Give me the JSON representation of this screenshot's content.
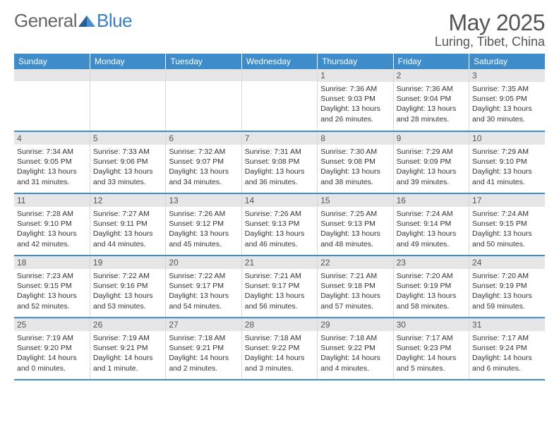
{
  "logo": {
    "text1": "General",
    "text2": "Blue"
  },
  "title": "May 2025",
  "location": "Luring, Tibet, China",
  "dayHeaders": [
    "Sunday",
    "Monday",
    "Tuesday",
    "Wednesday",
    "Thursday",
    "Friday",
    "Saturday"
  ],
  "colors": {
    "headerBg": "#3e8cc9",
    "headerText": "#ffffff",
    "daynumBg": "#e6e6e6",
    "borderBlue": "#3e8cc9",
    "bodyText": "#333333"
  },
  "weeks": [
    [
      {
        "num": "",
        "sunrise": "",
        "sunset": "",
        "daylight": ""
      },
      {
        "num": "",
        "sunrise": "",
        "sunset": "",
        "daylight": ""
      },
      {
        "num": "",
        "sunrise": "",
        "sunset": "",
        "daylight": ""
      },
      {
        "num": "",
        "sunrise": "",
        "sunset": "",
        "daylight": ""
      },
      {
        "num": "1",
        "sunrise": "Sunrise: 7:36 AM",
        "sunset": "Sunset: 9:03 PM",
        "daylight": "Daylight: 13 hours and 26 minutes."
      },
      {
        "num": "2",
        "sunrise": "Sunrise: 7:36 AM",
        "sunset": "Sunset: 9:04 PM",
        "daylight": "Daylight: 13 hours and 28 minutes."
      },
      {
        "num": "3",
        "sunrise": "Sunrise: 7:35 AM",
        "sunset": "Sunset: 9:05 PM",
        "daylight": "Daylight: 13 hours and 30 minutes."
      }
    ],
    [
      {
        "num": "4",
        "sunrise": "Sunrise: 7:34 AM",
        "sunset": "Sunset: 9:05 PM",
        "daylight": "Daylight: 13 hours and 31 minutes."
      },
      {
        "num": "5",
        "sunrise": "Sunrise: 7:33 AM",
        "sunset": "Sunset: 9:06 PM",
        "daylight": "Daylight: 13 hours and 33 minutes."
      },
      {
        "num": "6",
        "sunrise": "Sunrise: 7:32 AM",
        "sunset": "Sunset: 9:07 PM",
        "daylight": "Daylight: 13 hours and 34 minutes."
      },
      {
        "num": "7",
        "sunrise": "Sunrise: 7:31 AM",
        "sunset": "Sunset: 9:08 PM",
        "daylight": "Daylight: 13 hours and 36 minutes."
      },
      {
        "num": "8",
        "sunrise": "Sunrise: 7:30 AM",
        "sunset": "Sunset: 9:08 PM",
        "daylight": "Daylight: 13 hours and 38 minutes."
      },
      {
        "num": "9",
        "sunrise": "Sunrise: 7:29 AM",
        "sunset": "Sunset: 9:09 PM",
        "daylight": "Daylight: 13 hours and 39 minutes."
      },
      {
        "num": "10",
        "sunrise": "Sunrise: 7:29 AM",
        "sunset": "Sunset: 9:10 PM",
        "daylight": "Daylight: 13 hours and 41 minutes."
      }
    ],
    [
      {
        "num": "11",
        "sunrise": "Sunrise: 7:28 AM",
        "sunset": "Sunset: 9:10 PM",
        "daylight": "Daylight: 13 hours and 42 minutes."
      },
      {
        "num": "12",
        "sunrise": "Sunrise: 7:27 AM",
        "sunset": "Sunset: 9:11 PM",
        "daylight": "Daylight: 13 hours and 44 minutes."
      },
      {
        "num": "13",
        "sunrise": "Sunrise: 7:26 AM",
        "sunset": "Sunset: 9:12 PM",
        "daylight": "Daylight: 13 hours and 45 minutes."
      },
      {
        "num": "14",
        "sunrise": "Sunrise: 7:26 AM",
        "sunset": "Sunset: 9:13 PM",
        "daylight": "Daylight: 13 hours and 46 minutes."
      },
      {
        "num": "15",
        "sunrise": "Sunrise: 7:25 AM",
        "sunset": "Sunset: 9:13 PM",
        "daylight": "Daylight: 13 hours and 48 minutes."
      },
      {
        "num": "16",
        "sunrise": "Sunrise: 7:24 AM",
        "sunset": "Sunset: 9:14 PM",
        "daylight": "Daylight: 13 hours and 49 minutes."
      },
      {
        "num": "17",
        "sunrise": "Sunrise: 7:24 AM",
        "sunset": "Sunset: 9:15 PM",
        "daylight": "Daylight: 13 hours and 50 minutes."
      }
    ],
    [
      {
        "num": "18",
        "sunrise": "Sunrise: 7:23 AM",
        "sunset": "Sunset: 9:15 PM",
        "daylight": "Daylight: 13 hours and 52 minutes."
      },
      {
        "num": "19",
        "sunrise": "Sunrise: 7:22 AM",
        "sunset": "Sunset: 9:16 PM",
        "daylight": "Daylight: 13 hours and 53 minutes."
      },
      {
        "num": "20",
        "sunrise": "Sunrise: 7:22 AM",
        "sunset": "Sunset: 9:17 PM",
        "daylight": "Daylight: 13 hours and 54 minutes."
      },
      {
        "num": "21",
        "sunrise": "Sunrise: 7:21 AM",
        "sunset": "Sunset: 9:17 PM",
        "daylight": "Daylight: 13 hours and 56 minutes."
      },
      {
        "num": "22",
        "sunrise": "Sunrise: 7:21 AM",
        "sunset": "Sunset: 9:18 PM",
        "daylight": "Daylight: 13 hours and 57 minutes."
      },
      {
        "num": "23",
        "sunrise": "Sunrise: 7:20 AM",
        "sunset": "Sunset: 9:19 PM",
        "daylight": "Daylight: 13 hours and 58 minutes."
      },
      {
        "num": "24",
        "sunrise": "Sunrise: 7:20 AM",
        "sunset": "Sunset: 9:19 PM",
        "daylight": "Daylight: 13 hours and 59 minutes."
      }
    ],
    [
      {
        "num": "25",
        "sunrise": "Sunrise: 7:19 AM",
        "sunset": "Sunset: 9:20 PM",
        "daylight": "Daylight: 14 hours and 0 minutes."
      },
      {
        "num": "26",
        "sunrise": "Sunrise: 7:19 AM",
        "sunset": "Sunset: 9:21 PM",
        "daylight": "Daylight: 14 hours and 1 minute."
      },
      {
        "num": "27",
        "sunrise": "Sunrise: 7:18 AM",
        "sunset": "Sunset: 9:21 PM",
        "daylight": "Daylight: 14 hours and 2 minutes."
      },
      {
        "num": "28",
        "sunrise": "Sunrise: 7:18 AM",
        "sunset": "Sunset: 9:22 PM",
        "daylight": "Daylight: 14 hours and 3 minutes."
      },
      {
        "num": "29",
        "sunrise": "Sunrise: 7:18 AM",
        "sunset": "Sunset: 9:22 PM",
        "daylight": "Daylight: 14 hours and 4 minutes."
      },
      {
        "num": "30",
        "sunrise": "Sunrise: 7:17 AM",
        "sunset": "Sunset: 9:23 PM",
        "daylight": "Daylight: 14 hours and 5 minutes."
      },
      {
        "num": "31",
        "sunrise": "Sunrise: 7:17 AM",
        "sunset": "Sunset: 9:24 PM",
        "daylight": "Daylight: 14 hours and 6 minutes."
      }
    ]
  ]
}
